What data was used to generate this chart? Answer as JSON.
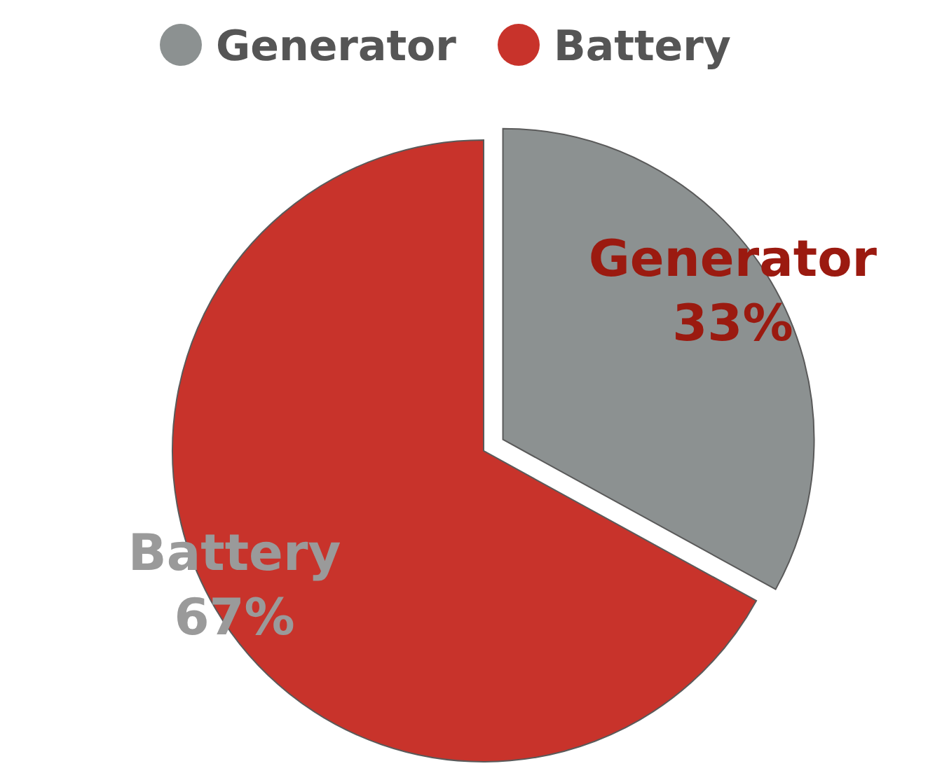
{
  "chart_data": {
    "type": "pie",
    "categories": [
      "Generator",
      "Battery"
    ],
    "values": [
      33,
      67
    ],
    "colors": [
      "#8c9191",
      "#c8332b"
    ],
    "value_labels": [
      "33%",
      "67%"
    ],
    "legend": "top"
  }
}
